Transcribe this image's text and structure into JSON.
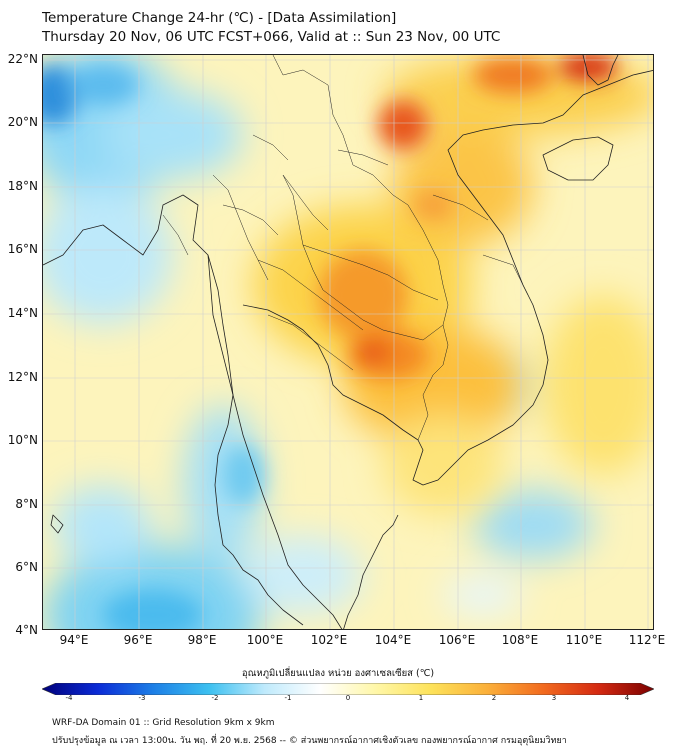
{
  "header": {
    "title_line1": "Temperature Change 24-hr (℃) - [Data Assimilation]",
    "title_line2": "Thursday 20 Nov, 06 UTC FCST+066, Valid at :: Sun 23 Nov, 00 UTC"
  },
  "axes": {
    "lat_ticks": [
      "22°N",
      "20°N",
      "18°N",
      "16°N",
      "14°N",
      "12°N",
      "10°N",
      "8°N",
      "6°N",
      "4°N"
    ],
    "lon_ticks": [
      "94°E",
      "96°E",
      "98°E",
      "100°E",
      "102°E",
      "104°E",
      "106°E",
      "108°E",
      "110°E",
      "112°E"
    ]
  },
  "colorbar": {
    "label": "อุณหภูมิเปลี่ยนแปลง หน่วย องศาเซลเซียส (℃)",
    "ticks": [
      "-4",
      "-3",
      "-2",
      "-1",
      "0",
      "1",
      "2",
      "3",
      "4"
    ],
    "colors": [
      "#00007a",
      "#0b2bd6",
      "#1d7fe6",
      "#3cc0f0",
      "#bfeafc",
      "#ffffff",
      "#fff7a8",
      "#fde25a",
      "#fbb03a",
      "#f26b1f",
      "#d42a12",
      "#7a0000"
    ]
  },
  "footer": {
    "line1": "WRF-DA Domain 01 :: Grid Resolution 9km x 9km",
    "line2": "ปรับปรุงข้อมูล ณ เวลา 13:00น. วัน พฤ. ที่ 20 พ.ย. 2568 -- © ส่วนพยากรณ์อากาศเชิงตัวเลข กองพยากรณ์อากาศ กรมอุตุนิยมวิทยา"
  }
}
